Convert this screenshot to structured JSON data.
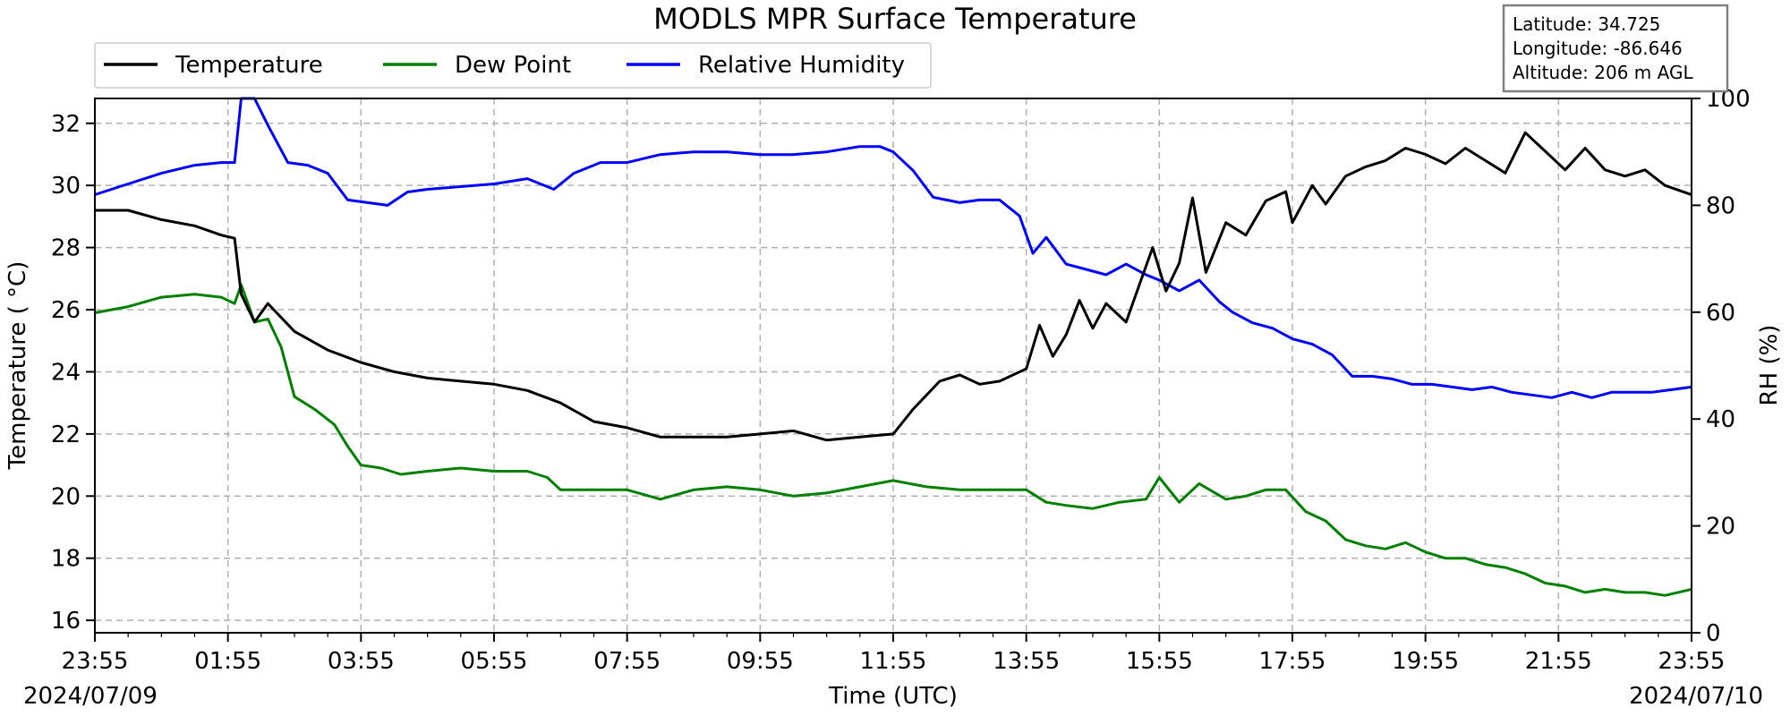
{
  "chart_data": {
    "type": "line",
    "title": "MODLS MPR Surface Temperature",
    "xlabel": "Time (UTC)",
    "ylabel": "Temperature ( $^\\circ$C)",
    "ylabel_display": "Temperature ( °C)",
    "y2label": "RH (%)",
    "x_tick_labels": [
      "23:55",
      "01:55",
      "03:55",
      "05:55",
      "07:55",
      "09:55",
      "11:55",
      "13:55",
      "15:55",
      "17:55",
      "19:55",
      "21:55",
      "23:55"
    ],
    "x_tick_hours": [
      0,
      2,
      4,
      6,
      8,
      10,
      12,
      14,
      16,
      18,
      20,
      22,
      24
    ],
    "x_start_date": "2024/07/09",
    "x_end_date": "2024/07/10",
    "xlim_hours": [
      0,
      24
    ],
    "ylim": [
      15.6,
      32.8
    ],
    "y_ticks": [
      16,
      18,
      20,
      22,
      24,
      26,
      28,
      30,
      32
    ],
    "y2lim": [
      0,
      100
    ],
    "y2_ticks": [
      0,
      20,
      40,
      60,
      80,
      100
    ],
    "grid": true,
    "legend_position": "top-left-outside",
    "colors": {
      "temperature": "#000000",
      "dew_point": "#008000",
      "rh": "#0000ff",
      "grid": "#b0b0b0"
    },
    "info_box": {
      "latitude": "Latitude: 34.725",
      "longitude": "Longitude: -86.646",
      "altitude": "Altitude: 206 m AGL"
    },
    "series": [
      {
        "name": "Temperature",
        "axis": "left",
        "points": [
          [
            0.0,
            29.2
          ],
          [
            0.5,
            29.2
          ],
          [
            1.0,
            28.9
          ],
          [
            1.5,
            28.7
          ],
          [
            1.9,
            28.4
          ],
          [
            2.1,
            28.3
          ],
          [
            2.2,
            26.5
          ],
          [
            2.4,
            25.6
          ],
          [
            2.6,
            26.2
          ],
          [
            3.0,
            25.3
          ],
          [
            3.5,
            24.7
          ],
          [
            4.0,
            24.3
          ],
          [
            4.5,
            24.0
          ],
          [
            5.0,
            23.8
          ],
          [
            5.5,
            23.7
          ],
          [
            6.0,
            23.6
          ],
          [
            6.5,
            23.4
          ],
          [
            7.0,
            23.0
          ],
          [
            7.5,
            22.4
          ],
          [
            8.0,
            22.2
          ],
          [
            8.5,
            21.9
          ],
          [
            9.0,
            21.9
          ],
          [
            9.5,
            21.9
          ],
          [
            10.0,
            22.0
          ],
          [
            10.5,
            22.1
          ],
          [
            11.0,
            21.8
          ],
          [
            11.5,
            21.9
          ],
          [
            12.0,
            22.0
          ],
          [
            12.3,
            22.8
          ],
          [
            12.7,
            23.7
          ],
          [
            13.0,
            23.9
          ],
          [
            13.3,
            23.6
          ],
          [
            13.6,
            23.7
          ],
          [
            14.0,
            24.1
          ],
          [
            14.2,
            25.5
          ],
          [
            14.4,
            24.5
          ],
          [
            14.6,
            25.2
          ],
          [
            14.8,
            26.3
          ],
          [
            15.0,
            25.4
          ],
          [
            15.2,
            26.2
          ],
          [
            15.5,
            25.6
          ],
          [
            15.7,
            26.8
          ],
          [
            15.9,
            28.0
          ],
          [
            16.1,
            26.6
          ],
          [
            16.3,
            27.5
          ],
          [
            16.5,
            29.6
          ],
          [
            16.7,
            27.2
          ],
          [
            17.0,
            28.8
          ],
          [
            17.3,
            28.4
          ],
          [
            17.6,
            29.5
          ],
          [
            17.9,
            29.8
          ],
          [
            18.0,
            28.8
          ],
          [
            18.3,
            30.0
          ],
          [
            18.5,
            29.4
          ],
          [
            18.8,
            30.3
          ],
          [
            19.1,
            30.6
          ],
          [
            19.4,
            30.8
          ],
          [
            19.7,
            31.2
          ],
          [
            20.0,
            31.0
          ],
          [
            20.3,
            30.7
          ],
          [
            20.6,
            31.2
          ],
          [
            20.9,
            30.8
          ],
          [
            21.2,
            30.4
          ],
          [
            21.5,
            31.7
          ],
          [
            21.8,
            31.1
          ],
          [
            22.1,
            30.5
          ],
          [
            22.4,
            31.2
          ],
          [
            22.7,
            30.5
          ],
          [
            23.0,
            30.3
          ],
          [
            23.3,
            30.5
          ],
          [
            23.6,
            30.0
          ],
          [
            24.0,
            29.7
          ]
        ]
      },
      {
        "name": "Dew Point",
        "axis": "left",
        "points": [
          [
            0.0,
            25.9
          ],
          [
            0.5,
            26.1
          ],
          [
            1.0,
            26.4
          ],
          [
            1.5,
            26.5
          ],
          [
            1.9,
            26.4
          ],
          [
            2.1,
            26.2
          ],
          [
            2.2,
            26.8
          ],
          [
            2.4,
            25.6
          ],
          [
            2.6,
            25.7
          ],
          [
            2.8,
            24.8
          ],
          [
            3.0,
            23.2
          ],
          [
            3.3,
            22.8
          ],
          [
            3.6,
            22.3
          ],
          [
            3.8,
            21.6
          ],
          [
            4.0,
            21.0
          ],
          [
            4.3,
            20.9
          ],
          [
            4.6,
            20.7
          ],
          [
            5.0,
            20.8
          ],
          [
            5.5,
            20.9
          ],
          [
            6.0,
            20.8
          ],
          [
            6.5,
            20.8
          ],
          [
            6.8,
            20.6
          ],
          [
            7.0,
            20.2
          ],
          [
            7.5,
            20.2
          ],
          [
            8.0,
            20.2
          ],
          [
            8.5,
            19.9
          ],
          [
            9.0,
            20.2
          ],
          [
            9.5,
            20.3
          ],
          [
            10.0,
            20.2
          ],
          [
            10.5,
            20.0
          ],
          [
            11.0,
            20.1
          ],
          [
            11.5,
            20.3
          ],
          [
            12.0,
            20.5
          ],
          [
            12.5,
            20.3
          ],
          [
            13.0,
            20.2
          ],
          [
            13.5,
            20.2
          ],
          [
            14.0,
            20.2
          ],
          [
            14.3,
            19.8
          ],
          [
            14.6,
            19.7
          ],
          [
            15.0,
            19.6
          ],
          [
            15.4,
            19.8
          ],
          [
            15.8,
            19.9
          ],
          [
            16.0,
            20.6
          ],
          [
            16.3,
            19.8
          ],
          [
            16.6,
            20.4
          ],
          [
            17.0,
            19.9
          ],
          [
            17.3,
            20.0
          ],
          [
            17.6,
            20.2
          ],
          [
            17.9,
            20.2
          ],
          [
            18.2,
            19.5
          ],
          [
            18.5,
            19.2
          ],
          [
            18.8,
            18.6
          ],
          [
            19.1,
            18.4
          ],
          [
            19.4,
            18.3
          ],
          [
            19.7,
            18.5
          ],
          [
            20.0,
            18.2
          ],
          [
            20.3,
            18.0
          ],
          [
            20.6,
            18.0
          ],
          [
            20.9,
            17.8
          ],
          [
            21.2,
            17.7
          ],
          [
            21.5,
            17.5
          ],
          [
            21.8,
            17.2
          ],
          [
            22.1,
            17.1
          ],
          [
            22.4,
            16.9
          ],
          [
            22.7,
            17.0
          ],
          [
            23.0,
            16.9
          ],
          [
            23.3,
            16.9
          ],
          [
            23.6,
            16.8
          ],
          [
            24.0,
            17.0
          ]
        ]
      },
      {
        "name": "Relative Humidity",
        "axis": "right",
        "points": [
          [
            0.0,
            82.0
          ],
          [
            0.5,
            84.0
          ],
          [
            1.0,
            86.0
          ],
          [
            1.5,
            87.5
          ],
          [
            1.9,
            88.0
          ],
          [
            2.1,
            88.0
          ],
          [
            2.2,
            100.0
          ],
          [
            2.4,
            100.0
          ],
          [
            2.6,
            95.0
          ],
          [
            2.9,
            88.0
          ],
          [
            3.2,
            87.5
          ],
          [
            3.5,
            86.0
          ],
          [
            3.8,
            81.0
          ],
          [
            4.1,
            80.5
          ],
          [
            4.4,
            80.0
          ],
          [
            4.7,
            82.5
          ],
          [
            5.0,
            83.0
          ],
          [
            5.5,
            83.5
          ],
          [
            6.0,
            84.0
          ],
          [
            6.5,
            85.0
          ],
          [
            6.9,
            83.0
          ],
          [
            7.2,
            86.0
          ],
          [
            7.6,
            88.0
          ],
          [
            8.0,
            88.0
          ],
          [
            8.5,
            89.5
          ],
          [
            9.0,
            90.0
          ],
          [
            9.5,
            90.0
          ],
          [
            10.0,
            89.5
          ],
          [
            10.5,
            89.5
          ],
          [
            11.0,
            90.0
          ],
          [
            11.5,
            91.0
          ],
          [
            11.8,
            91.0
          ],
          [
            12.0,
            90.0
          ],
          [
            12.3,
            86.5
          ],
          [
            12.6,
            81.5
          ],
          [
            13.0,
            80.5
          ],
          [
            13.3,
            81.0
          ],
          [
            13.6,
            81.0
          ],
          [
            13.9,
            78.0
          ],
          [
            14.1,
            71.0
          ],
          [
            14.3,
            74.0
          ],
          [
            14.6,
            69.0
          ],
          [
            14.9,
            68.0
          ],
          [
            15.2,
            67.0
          ],
          [
            15.5,
            69.0
          ],
          [
            15.8,
            67.0
          ],
          [
            16.0,
            66.0
          ],
          [
            16.3,
            64.0
          ],
          [
            16.6,
            66.0
          ],
          [
            16.9,
            62.0
          ],
          [
            17.1,
            60.0
          ],
          [
            17.4,
            58.0
          ],
          [
            17.7,
            57.0
          ],
          [
            18.0,
            55.0
          ],
          [
            18.3,
            54.0
          ],
          [
            18.6,
            52.0
          ],
          [
            18.9,
            48.0
          ],
          [
            19.2,
            48.0
          ],
          [
            19.5,
            47.5
          ],
          [
            19.8,
            46.5
          ],
          [
            20.1,
            46.5
          ],
          [
            20.4,
            46.0
          ],
          [
            20.7,
            45.5
          ],
          [
            21.0,
            46.0
          ],
          [
            21.3,
            45.0
          ],
          [
            21.6,
            44.5
          ],
          [
            21.9,
            44.0
          ],
          [
            22.2,
            45.0
          ],
          [
            22.5,
            44.0
          ],
          [
            22.8,
            45.0
          ],
          [
            23.1,
            45.0
          ],
          [
            23.4,
            45.0
          ],
          [
            23.7,
            45.5
          ],
          [
            24.0,
            46.0
          ]
        ]
      }
    ]
  }
}
